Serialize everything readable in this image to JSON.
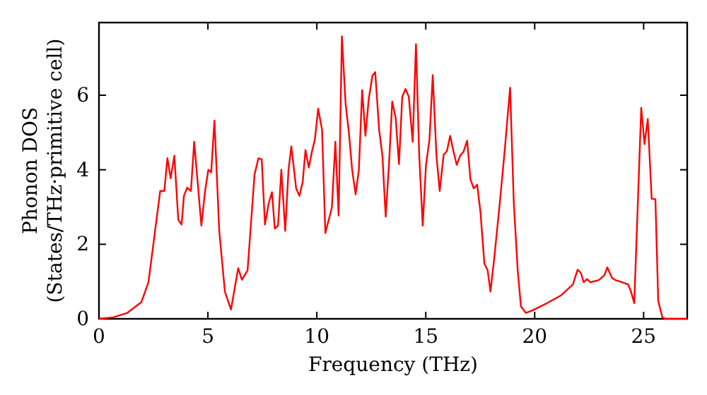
{
  "chart_data": {
    "type": "line",
    "xlabel": "Frequency (THz)",
    "ylabel": "Phonon DOS\n(States/THz·primitive cell)",
    "xlim": [
      0,
      27
    ],
    "ylim": [
      0,
      7.95
    ],
    "xticks": [
      0,
      5,
      10,
      15,
      20,
      25
    ],
    "yticks": [
      0,
      2,
      4,
      6
    ],
    "grid": false,
    "marker": "none",
    "line_style": "solid",
    "series": [
      {
        "color": "#ff0000",
        "x": [
          0,
          0.65,
          1.3,
          1.95,
          2.27,
          2.81,
          3.0,
          3.14,
          3.29,
          3.46,
          3.64,
          3.79,
          3.9,
          4.05,
          4.22,
          4.37,
          4.7,
          4.87,
          5.02,
          5.15,
          5.3,
          5.52,
          5.78,
          6.06,
          6.39,
          6.56,
          6.82,
          7.14,
          7.32,
          7.47,
          7.62,
          7.79,
          7.94,
          8.07,
          8.22,
          8.37,
          8.55,
          8.7,
          8.83,
          9.05,
          9.2,
          9.35,
          9.48,
          9.63,
          9.78,
          9.91,
          10.06,
          10.24,
          10.39,
          10.54,
          10.69,
          10.85,
          11.0,
          11.15,
          11.32,
          11.47,
          11.62,
          11.78,
          11.93,
          12.08,
          12.23,
          12.38,
          12.55,
          12.68,
          12.86,
          13.01,
          13.16,
          13.31,
          13.46,
          13.62,
          13.77,
          13.92,
          14.07,
          14.22,
          14.4,
          14.55,
          14.7,
          14.86,
          15.01,
          15.17,
          15.32,
          15.49,
          15.64,
          15.82,
          15.97,
          16.12,
          16.27,
          16.42,
          16.58,
          16.73,
          16.9,
          17.05,
          17.2,
          17.36,
          17.51,
          17.69,
          17.84,
          17.97,
          18.14,
          18.4,
          18.62,
          18.87,
          19.04,
          19.22,
          19.37,
          19.59,
          19.91,
          20.56,
          21.21,
          21.75,
          21.97,
          22.12,
          22.25,
          22.4,
          22.55,
          22.94,
          23.2,
          23.33,
          23.55,
          23.7,
          23.92,
          24.29,
          24.42,
          24.57,
          24.89,
          25.04,
          25.19,
          25.37,
          25.54,
          25.67,
          25.86,
          26.0,
          27.0
        ],
        "values": [
          0,
          0.04,
          0.16,
          0.45,
          0.98,
          3.43,
          3.43,
          4.31,
          3.77,
          4.38,
          2.66,
          2.53,
          3.3,
          3.52,
          3.43,
          4.75,
          2.5,
          3.43,
          4.0,
          3.93,
          5.32,
          2.36,
          0.73,
          0.25,
          1.36,
          1.05,
          1.3,
          3.87,
          4.31,
          4.28,
          2.53,
          3.1,
          3.4,
          2.42,
          2.5,
          4.0,
          2.36,
          4.0,
          4.63,
          3.5,
          3.3,
          3.67,
          4.53,
          4.06,
          4.5,
          4.81,
          5.64,
          5.07,
          2.3,
          2.64,
          2.98,
          4.75,
          2.77,
          7.58,
          5.77,
          5.0,
          4.0,
          3.34,
          4.0,
          6.14,
          4.91,
          5.89,
          6.52,
          6.62,
          5.07,
          4.38,
          2.74,
          4.13,
          5.83,
          5.39,
          4.15,
          5.96,
          6.17,
          5.96,
          4.75,
          7.37,
          4.38,
          2.5,
          4.13,
          4.81,
          6.54,
          4.38,
          3.43,
          4.4,
          4.5,
          4.91,
          4.5,
          4.13,
          4.38,
          4.48,
          4.78,
          3.74,
          3.5,
          3.6,
          2.87,
          1.48,
          1.3,
          0.73,
          1.61,
          3.12,
          4.5,
          6.2,
          3.12,
          1.3,
          0.33,
          0.16,
          0.23,
          0.42,
          0.63,
          0.92,
          1.32,
          1.23,
          0.98,
          1.07,
          0.98,
          1.04,
          1.17,
          1.38,
          1.1,
          1.04,
          1.0,
          0.92,
          0.73,
          0.42,
          5.66,
          4.69,
          5.36,
          3.22,
          3.21,
          0.48,
          0.04,
          0,
          0
        ]
      }
    ]
  }
}
